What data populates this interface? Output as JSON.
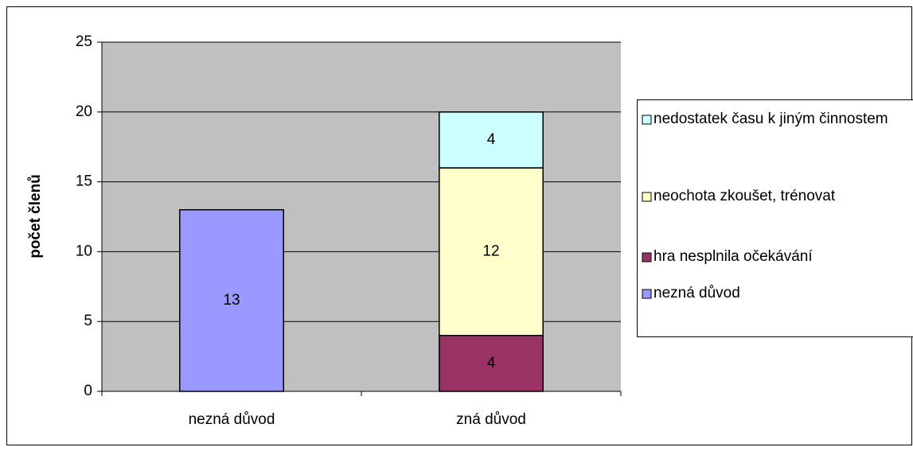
{
  "chart_data": {
    "type": "stacked_bar",
    "y_label": "počet členů",
    "categories": [
      "nezná důvod",
      "zná důvod"
    ],
    "series": [
      {
        "name": "nezná důvod",
        "color": "#9999ff",
        "values": [
          13,
          null
        ]
      },
      {
        "name": "hra nesplnila očekávání",
        "color": "#993366",
        "values": [
          null,
          4
        ]
      },
      {
        "name": "neochota zkoušet, trénovat",
        "color": "#ffffcc",
        "values": [
          null,
          12
        ]
      },
      {
        "name": "nedostatek času k jiným činnostem",
        "color": "#ccffff",
        "values": [
          null,
          4
        ]
      }
    ],
    "ylim": [
      0,
      25
    ],
    "yticks": [
      0,
      5,
      10,
      15,
      20,
      25
    ],
    "grid": true,
    "legend": "right",
    "plot_background": "#c0c0c0"
  }
}
